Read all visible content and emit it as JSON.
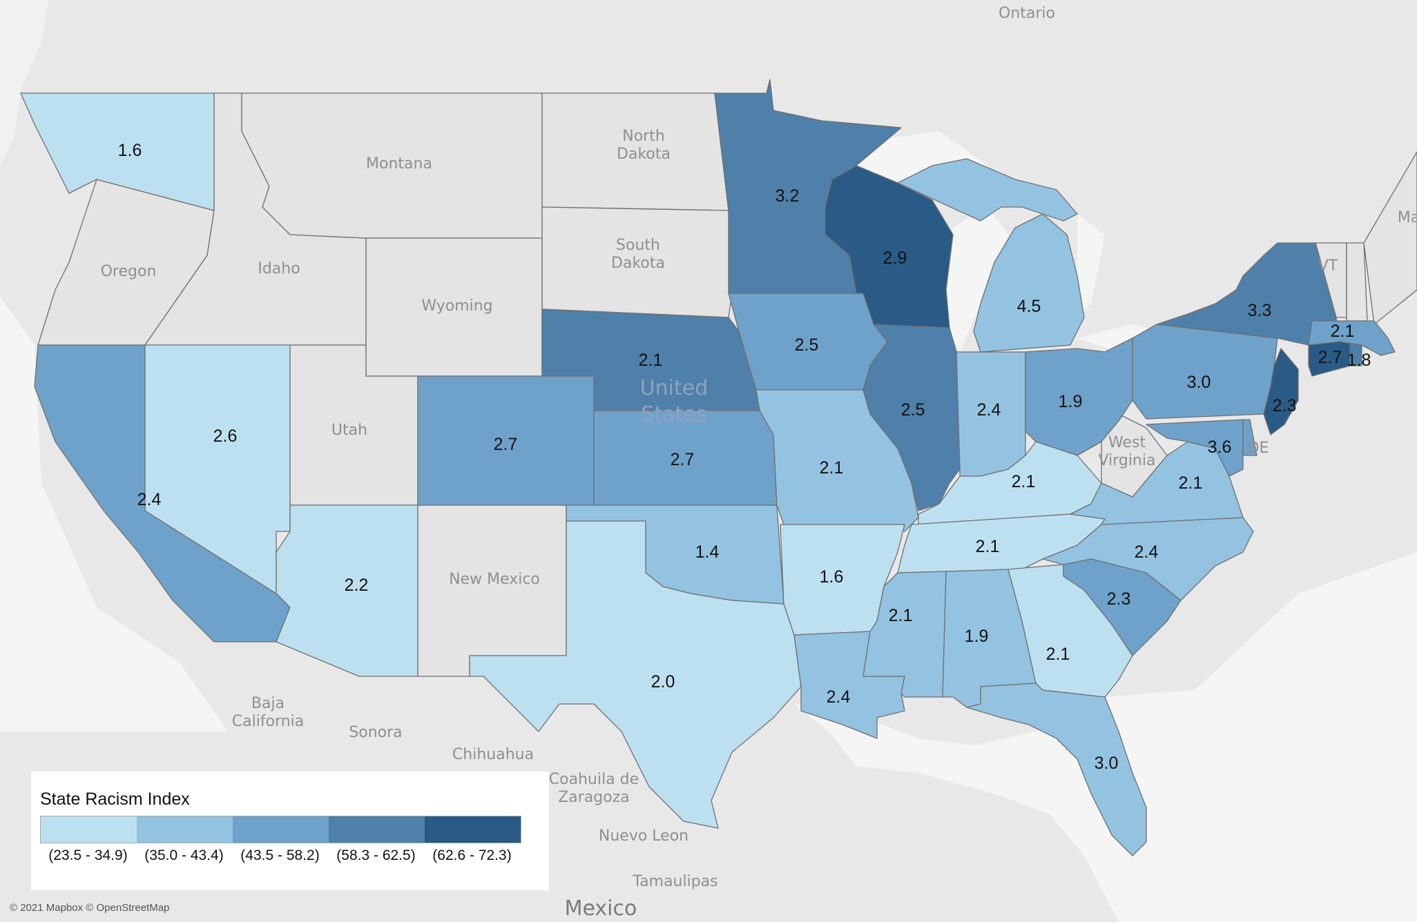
{
  "legend": {
    "title": "State Racism Index",
    "bins": [
      {
        "label": "(23.5 - 34.9)",
        "color": "#bde0f1"
      },
      {
        "label": "(35.0 - 43.4)",
        "color": "#93c3e1"
      },
      {
        "label": "(43.5 - 58.2)",
        "color": "#6fa2ca"
      },
      {
        "label": "(58.3 - 62.5)",
        "color": "#4e80aa"
      },
      {
        "label": "(62.6 - 72.3)",
        "color": "#2a5b86"
      }
    ]
  },
  "no_data_color": "#e4e4e4",
  "attribution": "© 2021 Mapbox © OpenStreetMap",
  "map_labels": {
    "country": [
      "United",
      "States"
    ],
    "mexico": "Mexico",
    "ontario": "Ontario",
    "ma_cut": "Ma",
    "montana": "Montana",
    "idaho": "Idaho",
    "oregon": "Oregon",
    "wyoming": "Wyoming",
    "utah": "Utah",
    "new_mexico": "New Mexico",
    "north_dakota": [
      "North",
      "Dakota"
    ],
    "south_dakota": [
      "South",
      "Dakota"
    ],
    "west_virginia": [
      "West",
      "Virginia"
    ],
    "vt": "VT",
    "de": "DE",
    "baja": [
      "Baja",
      "California"
    ],
    "sonora": "Sonora",
    "chihuahua": "Chihuahua",
    "coahuila": [
      "Coahuila de",
      "Zaragoza"
    ],
    "nuevo_leon": "Nuevo Leon",
    "tamaulipas": "Tamaulipas"
  },
  "states": [
    {
      "name": "Washington",
      "value": "1.6",
      "bin": 0
    },
    {
      "name": "California",
      "value": "2.4",
      "bin": 2
    },
    {
      "name": "Nevada",
      "value": "2.6",
      "bin": 0
    },
    {
      "name": "Arizona",
      "value": "2.2",
      "bin": 0
    },
    {
      "name": "Colorado",
      "value": "2.7",
      "bin": 2
    },
    {
      "name": "Nebraska",
      "value": "2.1",
      "bin": 3
    },
    {
      "name": "Kansas",
      "value": "2.7",
      "bin": 2
    },
    {
      "name": "Oklahoma",
      "value": "1.4",
      "bin": 1
    },
    {
      "name": "Texas",
      "value": "2.0",
      "bin": 0
    },
    {
      "name": "Minnesota",
      "value": "3.2",
      "bin": 3
    },
    {
      "name": "Iowa",
      "value": "2.5",
      "bin": 2
    },
    {
      "name": "Missouri",
      "value": "2.1",
      "bin": 1
    },
    {
      "name": "Arkansas",
      "value": "1.6",
      "bin": 0
    },
    {
      "name": "Louisiana",
      "value": "2.4",
      "bin": 1
    },
    {
      "name": "Wisconsin",
      "value": "2.9",
      "bin": 4
    },
    {
      "name": "Illinois",
      "value": "2.5",
      "bin": 3
    },
    {
      "name": "Michigan",
      "value": "4.5",
      "bin": 1
    },
    {
      "name": "Indiana",
      "value": "2.4",
      "bin": 1
    },
    {
      "name": "Ohio",
      "value": "1.9",
      "bin": 2
    },
    {
      "name": "Kentucky",
      "value": "2.1",
      "bin": 0
    },
    {
      "name": "Tennessee",
      "value": "2.1",
      "bin": 0
    },
    {
      "name": "Mississippi",
      "value": "2.1",
      "bin": 1
    },
    {
      "name": "Alabama",
      "value": "1.9",
      "bin": 1
    },
    {
      "name": "Georgia",
      "value": "2.1",
      "bin": 0
    },
    {
      "name": "Florida",
      "value": "3.0",
      "bin": 1
    },
    {
      "name": "South Carolina",
      "value": "2.3",
      "bin": 2
    },
    {
      "name": "North Carolina",
      "value": "2.4",
      "bin": 1
    },
    {
      "name": "Virginia",
      "value": "2.1",
      "bin": 1
    },
    {
      "name": "Maryland",
      "value": "3.6",
      "bin": 2
    },
    {
      "name": "Pennsylvania",
      "value": "3.0",
      "bin": 2
    },
    {
      "name": "New York",
      "value": "3.3",
      "bin": 3
    },
    {
      "name": "New Jersey",
      "value": "2.3",
      "bin": 4
    },
    {
      "name": "Connecticut",
      "value": "2.7",
      "bin": 4
    },
    {
      "name": "Rhode Island",
      "value": "1.8",
      "bin": 3
    },
    {
      "name": "Massachusetts",
      "value": "2.1",
      "bin": 2
    },
    {
      "name": "Delaware",
      "value": "",
      "bin": 2
    }
  ]
}
